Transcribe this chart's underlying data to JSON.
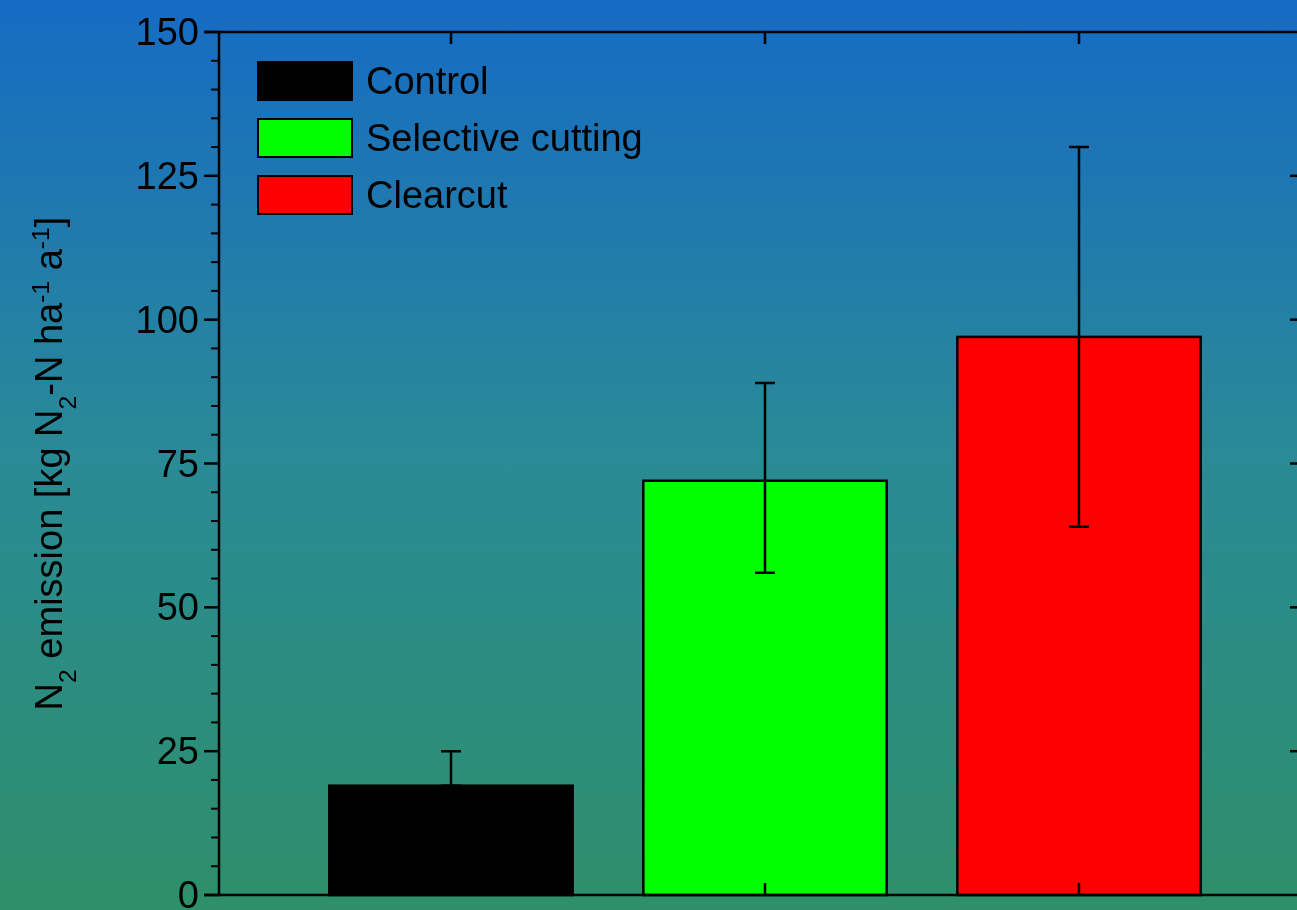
{
  "chart_data": {
    "type": "bar",
    "ylabel": "N$_{2}$ emission [kg N$_{2}$-N ha$^{-1}$ a$^{-1}$]",
    "categories": [
      null,
      null,
      null
    ],
    "series": [
      {
        "name": "Control",
        "color": "#000000",
        "values": [
          19,
          null,
          null
        ],
        "errors": [
          [
            19,
            25
          ],
          null,
          null
        ]
      },
      {
        "name": "Selective cutting",
        "color": "#00ff00",
        "values": [
          null,
          72,
          null
        ],
        "errors": [
          null,
          [
            56,
            89
          ],
          null
        ]
      },
      {
        "name": "Clearcut",
        "color": "#ff0000",
        "values": [
          null,
          null,
          97
        ],
        "errors": [
          null,
          null,
          [
            64,
            130
          ]
        ]
      }
    ],
    "ylim": [
      0,
      150
    ],
    "yticks": [
      0,
      25,
      50,
      75,
      100,
      125,
      150
    ],
    "grid": false,
    "legend": "top left"
  }
}
